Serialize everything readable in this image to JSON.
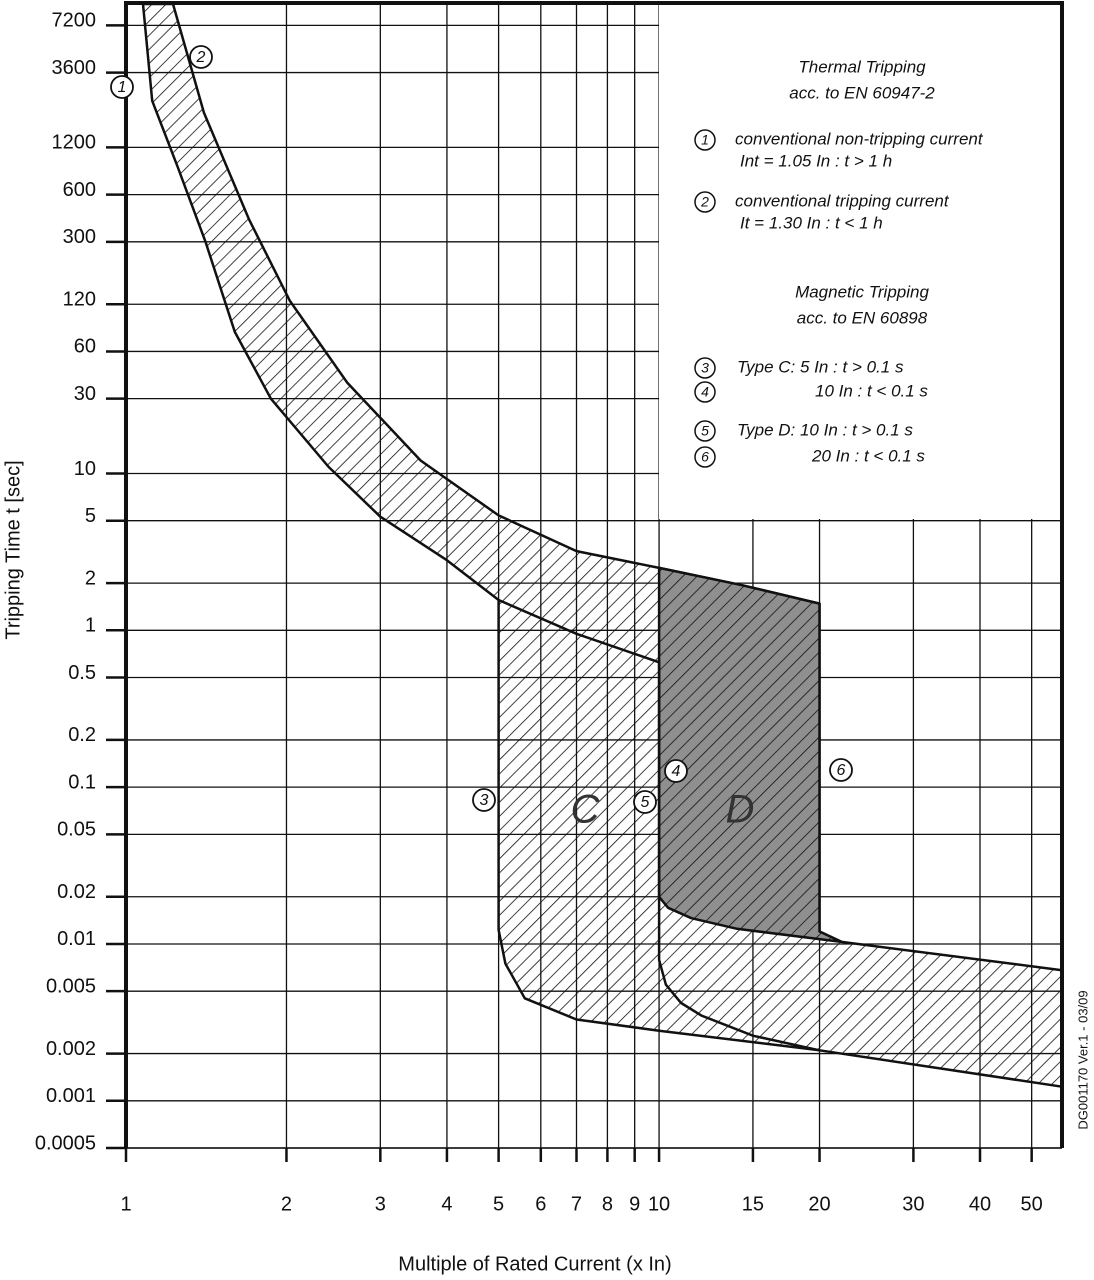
{
  "chart_data": {
    "type": "area",
    "xlabel": "Multiple of Rated Current (x In)",
    "ylabel": "Tripping Time t [sec]",
    "log_x": true,
    "log_y": true,
    "grid": true,
    "xlim": [
      1,
      57
    ],
    "xticks": [
      1,
      2,
      3,
      4,
      5,
      6,
      7,
      8,
      9,
      10,
      15,
      20,
      30,
      40,
      50
    ],
    "ylim": [
      0.0005,
      10000
    ],
    "yticks": [
      0.0005,
      0.001,
      0.002,
      0.005,
      0.01,
      0.02,
      0.05,
      0.1,
      0.2,
      0.5,
      1,
      2,
      5,
      10,
      30,
      60,
      120,
      300,
      600,
      1200,
      3600,
      7200
    ],
    "series": [
      {
        "fill": "hatch",
        "x": [
          1.225,
          1.4,
          1.7,
          2.03,
          2.6,
          3.57,
          5,
          7,
          10,
          14.3,
          20,
          20,
          22,
          57,
          57,
          20,
          10,
          7,
          5.6,
          5.15,
          5,
          5,
          4,
          3,
          2.4,
          1.87,
          1.6,
          1.41,
          1.25,
          1.12,
          1.076
        ],
        "values": [
          9860,
          2000,
          420,
          126,
          38,
          12.1,
          5.4,
          3.2,
          2.5,
          1.94,
          1.48,
          0.012,
          0.0103,
          0.0068,
          0.00123,
          0.0021,
          0.0028,
          0.0033,
          0.0045,
          0.0075,
          0.0123,
          1.56,
          2.8,
          5.3,
          11,
          30,
          80,
          300,
          900,
          2380,
          9860
        ]
      },
      {
        "fill": "#8f8f8f",
        "x": [
          10,
          14.3,
          20,
          20,
          22,
          14,
          11.5,
          10.4,
          10
        ],
        "values": [
          2.5,
          1.94,
          1.48,
          0.012,
          0.0103,
          0.0125,
          0.0146,
          0.017,
          0.02
        ]
      },
      {
        "fill": "none",
        "x": [
          5,
          7,
          10,
          10,
          10.3,
          11,
          12,
          15,
          20
        ],
        "values": [
          1.56,
          0.95,
          0.625,
          0.0079,
          0.0055,
          0.0042,
          0.0035,
          0.0026,
          0.0021
        ]
      }
    ],
    "annotations": [
      "1",
      "2",
      "3",
      "4",
      "5",
      "6",
      "C",
      "D"
    ],
    "key": {
      "thermal": [
        "Thermal Tripping",
        "acc. to EN 60947-2"
      ],
      "magnetic": [
        "Magnetic Tripping",
        "acc. to EN 60898"
      ],
      "entries": [
        {
          "marker": "1",
          "lines": [
            "conventional non-tripping current",
            "Int = 1.05 In : t > 1 h"
          ]
        },
        {
          "marker": "2",
          "lines": [
            "conventional tripping current",
            "It = 1.30 In : t < 1 h"
          ]
        },
        {
          "marker": "3",
          "lines": [
            "Type C:   5 In : t > 0.1 s"
          ]
        },
        {
          "marker": "4",
          "lines": [
            "10 In : t < 0.1 s"
          ]
        },
        {
          "marker": "5",
          "lines": [
            "Type D:  10 In : t > 0.1 s"
          ]
        },
        {
          "marker": "6",
          "lines": [
            "20 In : t < 0.1 s"
          ]
        }
      ]
    },
    "footnote": "DG001170 Ver.1 - 03/09"
  }
}
